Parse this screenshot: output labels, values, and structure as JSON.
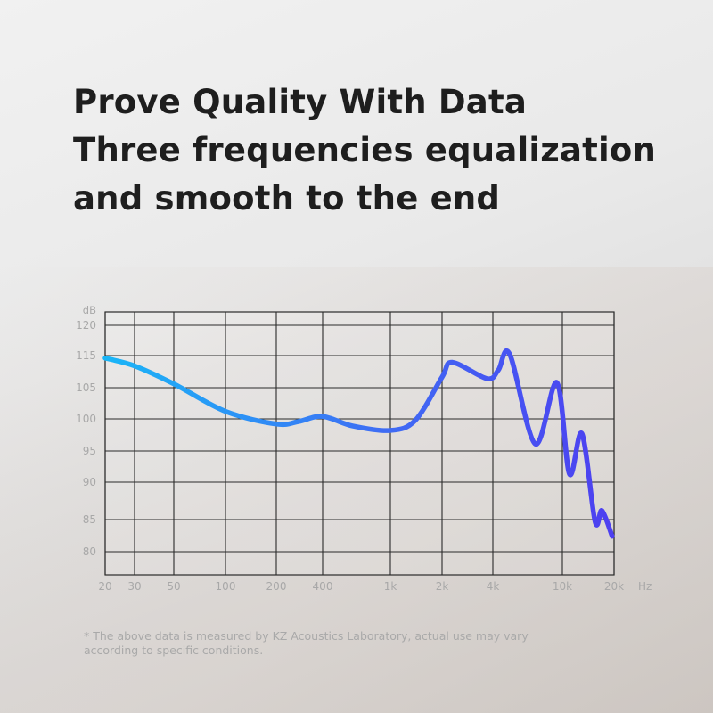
{
  "headline": {
    "line1": "Prove Quality With Data",
    "line2": "Three frequencies equalization",
    "line3": "and smooth to the end"
  },
  "footnote": {
    "line1": "* The above data is measured by KZ Acoustics Laboratory, actual use may vary",
    "line2": "according to specific conditions."
  },
  "chart_data": {
    "type": "line",
    "title": "",
    "xlabel": "Hz",
    "ylabel": "dB",
    "x_scale": "log",
    "grid": true,
    "x_ticks": [
      20,
      30,
      50,
      100,
      200,
      400,
      1000,
      2000,
      4000,
      10000,
      20000
    ],
    "x_tick_labels": [
      "20",
      "30",
      "50",
      "100",
      "200",
      "400",
      "1k",
      "2k",
      "4k",
      "10k",
      "20k"
    ],
    "y_ticks": [
      120,
      115,
      105,
      100,
      95,
      90,
      85,
      80
    ],
    "y_tick_labels": [
      "120",
      "115",
      "105",
      "100",
      "95",
      "90",
      "85",
      "80"
    ],
    "gradient_colors": [
      "#1ab6f7",
      "#3f6cf4",
      "#4d3ff0"
    ],
    "series": [
      {
        "x": [
          20,
          30,
          50,
          100,
          200,
          280,
          400,
          600,
          1000,
          1400,
          2000,
          2300,
          3700,
          4300,
          5000,
          7000,
          9300,
          11000,
          13000,
          15500,
          17000,
          19500
        ],
        "y": [
          114.2,
          111.8,
          106.2,
          101.2,
          99.2,
          99.6,
          100.4,
          98.9,
          98.2,
          99.8,
          108.3,
          112.9,
          107.8,
          110.5,
          115.2,
          96.1,
          106.6,
          91.3,
          97.7,
          84.7,
          86.2,
          82.4
        ]
      }
    ]
  }
}
